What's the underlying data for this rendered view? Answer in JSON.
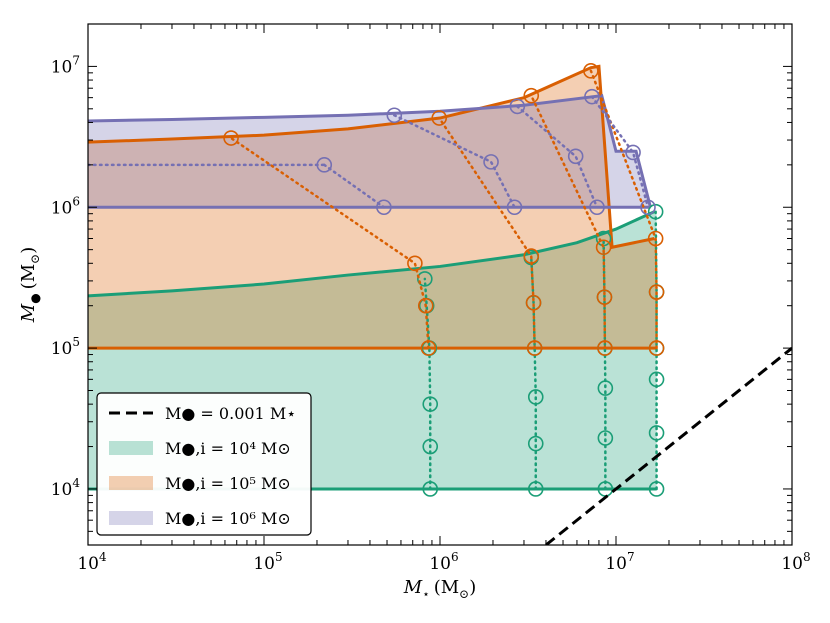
{
  "chart_data": {
    "type": "line",
    "x_scale": "log",
    "y_scale": "log",
    "xlim": [
      10000,
      100000000
    ],
    "ylim": [
      4000,
      20000000
    ],
    "x_ticks": [
      {
        "value": 10000,
        "base": "10",
        "exp": "4"
      },
      {
        "value": 100000,
        "base": "10",
        "exp": "5"
      },
      {
        "value": 1000000,
        "base": "10",
        "exp": "6"
      },
      {
        "value": 10000000,
        "base": "10",
        "exp": "7"
      },
      {
        "value": 100000000,
        "base": "10",
        "exp": "8"
      }
    ],
    "y_ticks": [
      {
        "value": 10000,
        "base": "10",
        "exp": "4"
      },
      {
        "value": 100000,
        "base": "10",
        "exp": "5"
      },
      {
        "value": 1000000,
        "base": "10",
        "exp": "6"
      },
      {
        "value": 10000000,
        "base": "10",
        "exp": "7"
      }
    ],
    "xlabel": {
      "symbol": "M",
      "sub": "⋆",
      "unit": "(M",
      "unit_sub": "⊙",
      "close": ")"
    },
    "ylabel": {
      "symbol": "M",
      "sub": "●",
      "unit": "(M",
      "unit_sub": "⊙",
      "close": ")"
    },
    "colors": {
      "green": "#1b9e77",
      "orange": "#d95f02",
      "purple": "#7570b3",
      "black": "#000000"
    },
    "reference_line": {
      "name": "M● = 0.001 M⋆",
      "x": [
        4000000,
        100000000
      ],
      "y": [
        4000,
        100000
      ]
    },
    "series": [
      {
        "name": "green",
        "color_key": "green",
        "fill_alpha": 0.3,
        "fill": {
          "upper": [
            [
              10000,
              235000
            ],
            [
              30000,
              255000
            ],
            [
              100000,
              285000
            ],
            [
              300000,
              330000
            ],
            [
              1000000,
              380000
            ],
            [
              3000000,
              460000
            ],
            [
              6000000,
              560000
            ],
            [
              10000000,
              700000
            ],
            [
              16500000,
              930000
            ],
            [
              17000000,
              930000
            ]
          ],
          "lower_y": 10000,
          "x_right": 17000000
        },
        "lines": [
          [
            [
              10000,
              10000
            ],
            [
              17000000,
              10000
            ]
          ],
          [
            [
              10000,
              235000
            ],
            [
              30000,
              255000
            ],
            [
              100000,
              285000
            ],
            [
              300000,
              330000
            ],
            [
              1000000,
              380000
            ],
            [
              3000000,
              460000
            ],
            [
              6000000,
              560000
            ],
            [
              10000000,
              700000
            ],
            [
              16500000,
              930000
            ]
          ]
        ],
        "tracks": [
          [
            [
              880000,
              10000
            ],
            [
              880000,
              20000
            ],
            [
              880000,
              40000
            ],
            [
              870000,
              100000
            ],
            [
              840000,
              200000
            ],
            [
              820000,
              310000
            ]
          ],
          [
            [
              3500000,
              10000
            ],
            [
              3500000,
              21000
            ],
            [
              3500000,
              45000
            ],
            [
              3450000,
              100000
            ],
            [
              3400000,
              210000
            ],
            [
              3300000,
              440000
            ]
          ],
          [
            [
              8700000,
              10000
            ],
            [
              8700000,
              23000
            ],
            [
              8700000,
              52000
            ],
            [
              8650000,
              100000
            ],
            [
              8600000,
              230000
            ],
            [
              8500000,
              600000
            ]
          ],
          [
            [
              17000000,
              10000
            ],
            [
              17000000,
              25000
            ],
            [
              17000000,
              60000
            ],
            [
              17000000,
              100000
            ],
            [
              17000000,
              250000
            ],
            [
              16800000,
              930000
            ]
          ]
        ]
      },
      {
        "name": "orange",
        "color_key": "orange",
        "fill_alpha": 0.3,
        "fill": {
          "upper": [
            [
              10000,
              2900000
            ],
            [
              30000,
              3050000
            ],
            [
              100000,
              3250000
            ],
            [
              300000,
              3600000
            ],
            [
              1000000,
              4300000
            ],
            [
              3000000,
              6000000
            ],
            [
              7200000,
              9800000
            ],
            [
              8000000,
              10000000
            ],
            [
              9500000,
              520000
            ],
            [
              16500000,
              600000
            ],
            [
              17000000,
              600000
            ]
          ],
          "lower_y": 100000,
          "x_right": 17000000
        },
        "lines": [
          [
            [
              10000,
              100000
            ],
            [
              17000000,
              100000
            ]
          ],
          [
            [
              10000,
              2900000
            ],
            [
              30000,
              3050000
            ],
            [
              100000,
              3250000
            ],
            [
              300000,
              3600000
            ],
            [
              1000000,
              4300000
            ],
            [
              3000000,
              6000000
            ],
            [
              7200000,
              9800000
            ],
            [
              8000000,
              10000000
            ],
            [
              9500000,
              520000
            ],
            [
              16500000,
              600000
            ]
          ]
        ],
        "tracks": [
          [
            [
              860000,
              100000
            ],
            [
              830000,
              200000
            ],
            [
              720000,
              400000
            ],
            [
              65000,
              3100000
            ]
          ],
          [
            [
              3450000,
              100000
            ],
            [
              3400000,
              210000
            ],
            [
              3300000,
              450000
            ],
            [
              990000,
              4300000
            ]
          ],
          [
            [
              8650000,
              100000
            ],
            [
              8600000,
              230000
            ],
            [
              8500000,
              520000
            ],
            [
              3300000,
              6200000
            ]
          ],
          [
            [
              17000000,
              100000
            ],
            [
              17000000,
              250000
            ],
            [
              16800000,
              600000
            ],
            [
              7200000,
              9300000
            ]
          ]
        ]
      },
      {
        "name": "purple",
        "color_key": "purple",
        "fill_alpha": 0.3,
        "fill": {
          "upper": [
            [
              10000,
              4100000
            ],
            [
              30000,
              4200000
            ],
            [
              100000,
              4350000
            ],
            [
              300000,
              4500000
            ],
            [
              1000000,
              4800000
            ],
            [
              3000000,
              5300000
            ],
            [
              6000000,
              5900000
            ],
            [
              8300000,
              6200000
            ],
            [
              10000000,
              2500000
            ],
            [
              13000000,
              2500000
            ],
            [
              15700000,
              1000000
            ]
          ],
          "lower_y": 1000000,
          "x_right": 15700000
        },
        "lines": [
          [
            [
              10000,
              1000000
            ],
            [
              15700000,
              1000000
            ]
          ],
          [
            [
              10000,
              4100000
            ],
            [
              30000,
              4200000
            ],
            [
              100000,
              4350000
            ],
            [
              300000,
              4500000
            ],
            [
              1000000,
              4800000
            ],
            [
              3000000,
              5300000
            ],
            [
              6000000,
              5900000
            ],
            [
              8300000,
              6200000
            ],
            [
              10000000,
              2500000
            ],
            [
              13000000,
              2500000
            ],
            [
              15700000,
              1000000
            ]
          ]
        ],
        "dotted_lines": [
          [
            [
              10000,
              2000000
            ],
            [
              220000,
              2000000
            ]
          ]
        ],
        "tracks": [
          [
            [
              220000,
              2000000
            ],
            [
              480000,
              1000000
            ]
          ],
          [
            [
              550000,
              4500000
            ],
            [
              1950000,
              2100000
            ],
            [
              2650000,
              1000000
            ]
          ],
          [
            [
              2750000,
              5200000
            ],
            [
              5900000,
              2300000
            ],
            [
              7800000,
              1000000
            ]
          ],
          [
            [
              7300000,
              6100000
            ],
            [
              12500000,
              2450000
            ],
            [
              15200000,
              1000000
            ]
          ]
        ]
      }
    ],
    "legend": {
      "placement": "lower-left",
      "entries": [
        {
          "kind": "line",
          "color_key": "black",
          "tex": "M● = 0.001 M⋆"
        },
        {
          "kind": "patch",
          "color_key": "green",
          "tex": "M●,i = 10⁴ M⊙"
        },
        {
          "kind": "patch",
          "color_key": "orange",
          "tex": "M●,i = 10⁵ M⊙"
        },
        {
          "kind": "patch",
          "color_key": "purple",
          "tex": "M●,i = 10⁶ M⊙"
        }
      ]
    }
  }
}
